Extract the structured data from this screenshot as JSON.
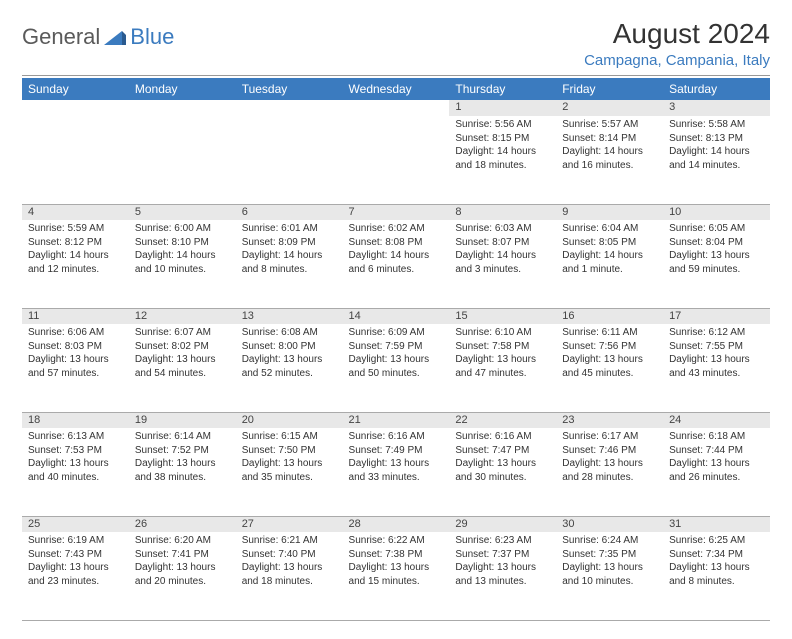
{
  "logo": {
    "text1": "General",
    "text2": "Blue"
  },
  "title": "August 2024",
  "location": "Campagna, Campania, Italy",
  "colors": {
    "header_bg": "#3b7bbf",
    "header_text": "#ffffff",
    "daynum_bg": "#e8e8e8",
    "text": "#333333",
    "location": "#3b7bbf",
    "divider": "#999999"
  },
  "weekdays": [
    "Sunday",
    "Monday",
    "Tuesday",
    "Wednesday",
    "Thursday",
    "Friday",
    "Saturday"
  ],
  "weeks": [
    [
      null,
      null,
      null,
      null,
      {
        "d": "1",
        "sr": "5:56 AM",
        "ss": "8:15 PM",
        "dl": "14 hours and 18 minutes."
      },
      {
        "d": "2",
        "sr": "5:57 AM",
        "ss": "8:14 PM",
        "dl": "14 hours and 16 minutes."
      },
      {
        "d": "3",
        "sr": "5:58 AM",
        "ss": "8:13 PM",
        "dl": "14 hours and 14 minutes."
      }
    ],
    [
      {
        "d": "4",
        "sr": "5:59 AM",
        "ss": "8:12 PM",
        "dl": "14 hours and 12 minutes."
      },
      {
        "d": "5",
        "sr": "6:00 AM",
        "ss": "8:10 PM",
        "dl": "14 hours and 10 minutes."
      },
      {
        "d": "6",
        "sr": "6:01 AM",
        "ss": "8:09 PM",
        "dl": "14 hours and 8 minutes."
      },
      {
        "d": "7",
        "sr": "6:02 AM",
        "ss": "8:08 PM",
        "dl": "14 hours and 6 minutes."
      },
      {
        "d": "8",
        "sr": "6:03 AM",
        "ss": "8:07 PM",
        "dl": "14 hours and 3 minutes."
      },
      {
        "d": "9",
        "sr": "6:04 AM",
        "ss": "8:05 PM",
        "dl": "14 hours and 1 minute."
      },
      {
        "d": "10",
        "sr": "6:05 AM",
        "ss": "8:04 PM",
        "dl": "13 hours and 59 minutes."
      }
    ],
    [
      {
        "d": "11",
        "sr": "6:06 AM",
        "ss": "8:03 PM",
        "dl": "13 hours and 57 minutes."
      },
      {
        "d": "12",
        "sr": "6:07 AM",
        "ss": "8:02 PM",
        "dl": "13 hours and 54 minutes."
      },
      {
        "d": "13",
        "sr": "6:08 AM",
        "ss": "8:00 PM",
        "dl": "13 hours and 52 minutes."
      },
      {
        "d": "14",
        "sr": "6:09 AM",
        "ss": "7:59 PM",
        "dl": "13 hours and 50 minutes."
      },
      {
        "d": "15",
        "sr": "6:10 AM",
        "ss": "7:58 PM",
        "dl": "13 hours and 47 minutes."
      },
      {
        "d": "16",
        "sr": "6:11 AM",
        "ss": "7:56 PM",
        "dl": "13 hours and 45 minutes."
      },
      {
        "d": "17",
        "sr": "6:12 AM",
        "ss": "7:55 PM",
        "dl": "13 hours and 43 minutes."
      }
    ],
    [
      {
        "d": "18",
        "sr": "6:13 AM",
        "ss": "7:53 PM",
        "dl": "13 hours and 40 minutes."
      },
      {
        "d": "19",
        "sr": "6:14 AM",
        "ss": "7:52 PM",
        "dl": "13 hours and 38 minutes."
      },
      {
        "d": "20",
        "sr": "6:15 AM",
        "ss": "7:50 PM",
        "dl": "13 hours and 35 minutes."
      },
      {
        "d": "21",
        "sr": "6:16 AM",
        "ss": "7:49 PM",
        "dl": "13 hours and 33 minutes."
      },
      {
        "d": "22",
        "sr": "6:16 AM",
        "ss": "7:47 PM",
        "dl": "13 hours and 30 minutes."
      },
      {
        "d": "23",
        "sr": "6:17 AM",
        "ss": "7:46 PM",
        "dl": "13 hours and 28 minutes."
      },
      {
        "d": "24",
        "sr": "6:18 AM",
        "ss": "7:44 PM",
        "dl": "13 hours and 26 minutes."
      }
    ],
    [
      {
        "d": "25",
        "sr": "6:19 AM",
        "ss": "7:43 PM",
        "dl": "13 hours and 23 minutes."
      },
      {
        "d": "26",
        "sr": "6:20 AM",
        "ss": "7:41 PM",
        "dl": "13 hours and 20 minutes."
      },
      {
        "d": "27",
        "sr": "6:21 AM",
        "ss": "7:40 PM",
        "dl": "13 hours and 18 minutes."
      },
      {
        "d": "28",
        "sr": "6:22 AM",
        "ss": "7:38 PM",
        "dl": "13 hours and 15 minutes."
      },
      {
        "d": "29",
        "sr": "6:23 AM",
        "ss": "7:37 PM",
        "dl": "13 hours and 13 minutes."
      },
      {
        "d": "30",
        "sr": "6:24 AM",
        "ss": "7:35 PM",
        "dl": "13 hours and 10 minutes."
      },
      {
        "d": "31",
        "sr": "6:25 AM",
        "ss": "7:34 PM",
        "dl": "13 hours and 8 minutes."
      }
    ]
  ],
  "labels": {
    "sunrise": "Sunrise:",
    "sunset": "Sunset:",
    "daylight": "Daylight:"
  }
}
